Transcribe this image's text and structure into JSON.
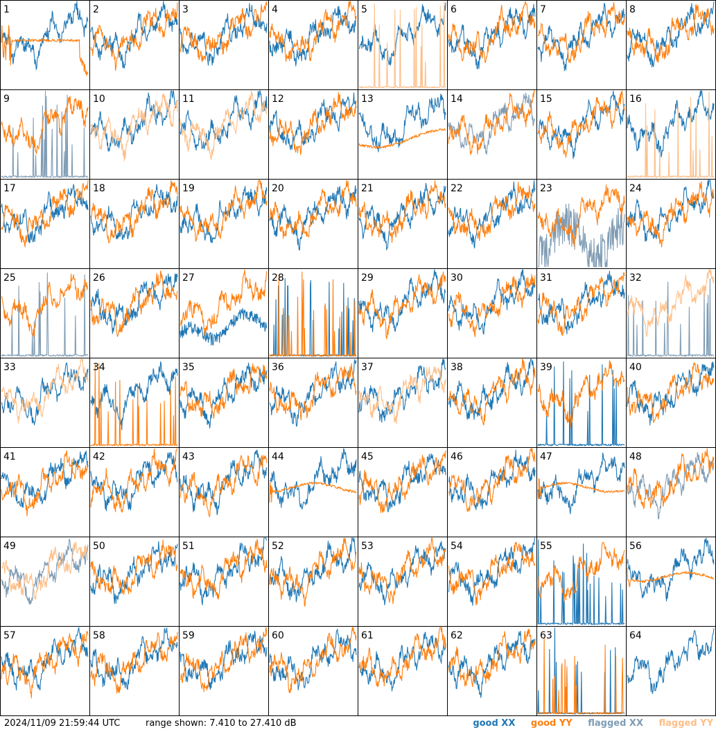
{
  "footer": {
    "timestamp": "2024/11/09 21:59:44 UTC",
    "range_text": "range shown: 7.410 to 27.410 dB"
  },
  "legend": {
    "good_xx": "good XX",
    "good_yy": "good YY",
    "flagged_xx": "flagged XX",
    "flagged_yy": "flagged YY"
  },
  "colors": {
    "good_xx": "#1f77b4",
    "good_yy": "#ff7f0e",
    "flagged_xx": "#7f9cb4",
    "flagged_yy": "#fdbf88"
  },
  "chart_data": {
    "type": "line",
    "panel_layout": "8x8 grid of small-multiple spectra",
    "ylim": [
      7.41,
      27.41
    ],
    "y_unit": "dB",
    "panels": [
      {
        "label": "1",
        "xx": "good",
        "yy": "good",
        "yy_shape": "flat_bump"
      },
      {
        "label": "2",
        "xx": "good",
        "yy": "good"
      },
      {
        "label": "3",
        "xx": "good",
        "yy": "good"
      },
      {
        "label": "4",
        "xx": "good",
        "yy": "good"
      },
      {
        "label": "5",
        "xx": "good",
        "yy": "flagged",
        "yy_shape": "spiky"
      },
      {
        "label": "6",
        "xx": "good",
        "yy": "good"
      },
      {
        "label": "7",
        "xx": "good",
        "yy": "good"
      },
      {
        "label": "8",
        "xx": "good",
        "yy": "good"
      },
      {
        "label": "9",
        "xx": "flagged",
        "yy": "good",
        "xx_shape": "spiky"
      },
      {
        "label": "10",
        "xx": "good",
        "yy": "flagged"
      },
      {
        "label": "11",
        "xx": "good",
        "yy": "flagged"
      },
      {
        "label": "12",
        "xx": "good",
        "yy": "good"
      },
      {
        "label": "13",
        "xx": "good",
        "yy": "good",
        "yy_shape": "smooth"
      },
      {
        "label": "14",
        "xx": "flagged",
        "yy": "good"
      },
      {
        "label": "15",
        "xx": "good",
        "yy": "good"
      },
      {
        "label": "16",
        "xx": "good",
        "yy": "flagged",
        "yy_shape": "spiky"
      },
      {
        "label": "17",
        "xx": "good",
        "yy": "good"
      },
      {
        "label": "18",
        "xx": "good",
        "yy": "good"
      },
      {
        "label": "19",
        "xx": "good",
        "yy": "good"
      },
      {
        "label": "20",
        "xx": "good",
        "yy": "good"
      },
      {
        "label": "21",
        "xx": "good",
        "yy": "good"
      },
      {
        "label": "22",
        "xx": "good",
        "yy": "good"
      },
      {
        "label": "23",
        "xx": "flagged",
        "yy": "good",
        "xx_shape": "noisy_low"
      },
      {
        "label": "24",
        "xx": "good",
        "yy": "good"
      },
      {
        "label": "25",
        "xx": "flagged",
        "yy": "good",
        "xx_shape": "spiky"
      },
      {
        "label": "26",
        "xx": "good",
        "yy": "good"
      },
      {
        "label": "27",
        "xx": "good",
        "yy": "good",
        "xx_shape": "low"
      },
      {
        "label": "28",
        "xx": "good",
        "yy": "good",
        "xx_shape": "spiky",
        "yy_shape": "spiky"
      },
      {
        "label": "29",
        "xx": "good",
        "yy": "good"
      },
      {
        "label": "30",
        "xx": "good",
        "yy": "good"
      },
      {
        "label": "31",
        "xx": "good",
        "yy": "good"
      },
      {
        "label": "32",
        "xx": "flagged",
        "yy": "flagged",
        "xx_shape": "spiky"
      },
      {
        "label": "33",
        "xx": "good",
        "yy": "flagged"
      },
      {
        "label": "34",
        "xx": "good",
        "yy": "good",
        "yy_shape": "spiky"
      },
      {
        "label": "35",
        "xx": "good",
        "yy": "good"
      },
      {
        "label": "36",
        "xx": "good",
        "yy": "good"
      },
      {
        "label": "37",
        "xx": "good",
        "yy": "flagged"
      },
      {
        "label": "38",
        "xx": "good",
        "yy": "good"
      },
      {
        "label": "39",
        "xx": "good",
        "yy": "good",
        "xx_shape": "spiky"
      },
      {
        "label": "40",
        "xx": "good",
        "yy": "good"
      },
      {
        "label": "41",
        "xx": "good",
        "yy": "good"
      },
      {
        "label": "42",
        "xx": "good",
        "yy": "good"
      },
      {
        "label": "43",
        "xx": "good",
        "yy": "good"
      },
      {
        "label": "44",
        "xx": "good",
        "yy": "good",
        "yy_shape": "flat"
      },
      {
        "label": "45",
        "xx": "good",
        "yy": "good"
      },
      {
        "label": "46",
        "xx": "good",
        "yy": "good"
      },
      {
        "label": "47",
        "xx": "good",
        "yy": "good",
        "yy_shape": "flat"
      },
      {
        "label": "48",
        "xx": "flagged",
        "yy": "good"
      },
      {
        "label": "49",
        "xx": "flagged",
        "yy": "flagged"
      },
      {
        "label": "50",
        "xx": "good",
        "yy": "good"
      },
      {
        "label": "51",
        "xx": "good",
        "yy": "good"
      },
      {
        "label": "52",
        "xx": "good",
        "yy": "good"
      },
      {
        "label": "53",
        "xx": "good",
        "yy": "good"
      },
      {
        "label": "54",
        "xx": "good",
        "yy": "good"
      },
      {
        "label": "55",
        "xx": "good",
        "yy": "good",
        "xx_shape": "spiky"
      },
      {
        "label": "56",
        "xx": "good",
        "yy": "good",
        "yy_shape": "flat"
      },
      {
        "label": "57",
        "xx": "good",
        "yy": "good"
      },
      {
        "label": "58",
        "xx": "good",
        "yy": "good"
      },
      {
        "label": "59",
        "xx": "good",
        "yy": "good"
      },
      {
        "label": "60",
        "xx": "good",
        "yy": "good"
      },
      {
        "label": "61",
        "xx": "good",
        "yy": "good"
      },
      {
        "label": "62",
        "xx": "good",
        "yy": "good"
      },
      {
        "label": "63",
        "xx": "good",
        "yy": "good",
        "xx_shape": "spiky",
        "yy_shape": "spiky"
      },
      {
        "label": "64",
        "xx": "good",
        "yy": "none"
      }
    ]
  }
}
